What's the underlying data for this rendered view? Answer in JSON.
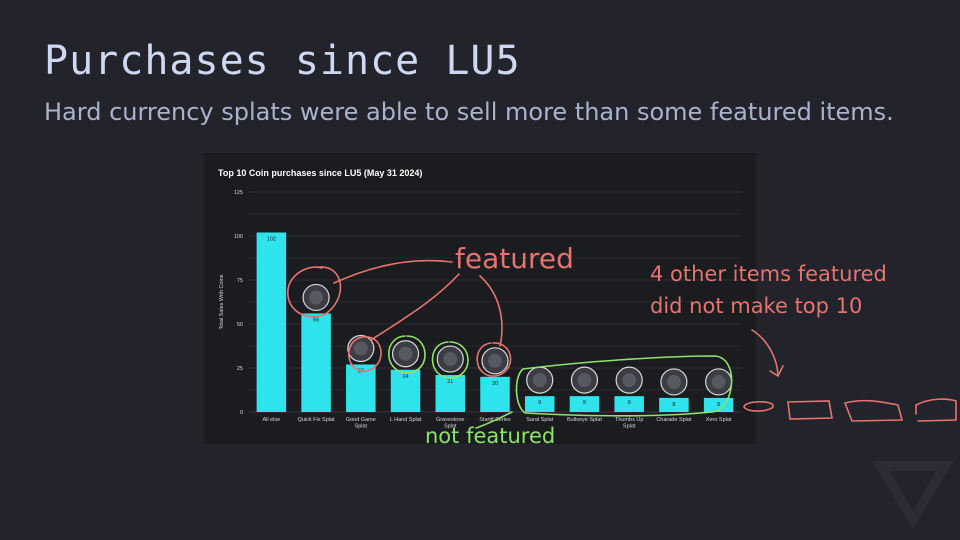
{
  "slide": {
    "title": "Purchases since LU5",
    "subtitle": "Hard currency splats were able to sell more than some featured items."
  },
  "annotations": {
    "featured": "featured",
    "other_featured_line1": "4 other items featured",
    "other_featured_line2": "did not make top 10",
    "not_featured": "not featured"
  },
  "colors": {
    "background": "#22232b",
    "chart_background": "#1b1c20",
    "bar": "#2ee3ec",
    "featured_annotation": "#e7736f",
    "not_featured_annotation": "#8ee36a"
  },
  "chart_data": {
    "type": "bar",
    "title": "Top 10 Coin purchases since LU5 (May 31 2024)",
    "xlabel": "",
    "ylabel": "Total Sales With Coins",
    "categories": [
      [
        "All else"
      ],
      [
        "Quick Fix Splat"
      ],
      [
        "Good Game",
        "Splat"
      ],
      [
        "L Hand Splat"
      ],
      [
        "Gravestone",
        "Splat"
      ],
      [
        "Startif Series"
      ],
      [
        "Saral Splat"
      ],
      [
        "Bullseye Splat"
      ],
      [
        "Thumbs Up",
        "Splat"
      ],
      [
        "Charade Splat"
      ],
      [
        "Xero Splat"
      ]
    ],
    "values": [
      102,
      56,
      27,
      24,
      21,
      20,
      9,
      9,
      9,
      8,
      8
    ],
    "ylim": [
      0,
      125
    ],
    "yticks": [
      0,
      25,
      50,
      75,
      100,
      125
    ],
    "grid": true,
    "item_icons": [
      null,
      "gold-star-splat-icon",
      "good-game-splat-icon",
      "l-hand-splat-icon",
      "gravestone-splat-icon",
      "startif-series-icon",
      "saral-portrait-icon",
      "bullseye-target-icon",
      "thumbs-up-splat-icon",
      "charade-portrait-icon",
      "xero-portrait-icon"
    ]
  }
}
